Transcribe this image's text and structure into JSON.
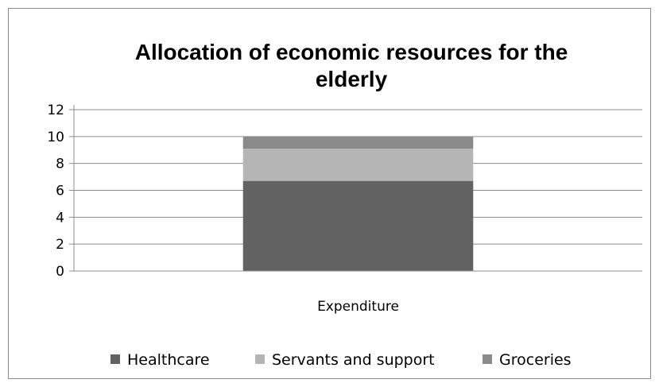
{
  "chart_data": {
    "type": "bar",
    "stacked": true,
    "title_lines": [
      "Allocation of economic resources for the",
      "elderly"
    ],
    "categories": [
      "Expenditure"
    ],
    "series": [
      {
        "name": "Healthcare",
        "values": [
          6.7
        ],
        "color": "#626262"
      },
      {
        "name": "Servants and support",
        "values": [
          2.4
        ],
        "color": "#b5b5b5"
      },
      {
        "name": "Groceries",
        "values": [
          0.9
        ],
        "color": "#8a8a8a"
      }
    ],
    "ylim": [
      0,
      12
    ],
    "yticks": [
      "0",
      "2",
      "4",
      "6",
      "8",
      "10",
      "12"
    ],
    "grid": true,
    "legend_position": "bottom"
  }
}
